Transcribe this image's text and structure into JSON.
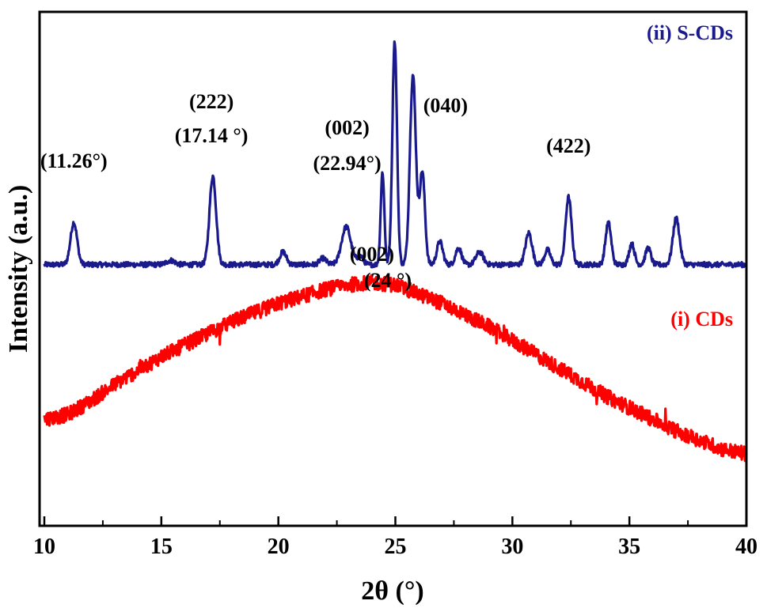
{
  "chart_data": {
    "type": "line",
    "xlabel": "2θ (°)",
    "ylabel": "Intensity (a.u.)",
    "xlim": [
      10,
      40
    ],
    "xticks": [
      "10",
      "15",
      "20",
      "25",
      "30",
      "35",
      "40"
    ],
    "yticks_shown": false,
    "grid": false,
    "series": [
      {
        "name": "(ii) S-CDs",
        "color": "#1a1a8c",
        "baseline": 0.62,
        "peaks": [
          {
            "x": 11.26,
            "height": 0.1,
            "width": 0.2
          },
          {
            "x": 15.4,
            "height": 0.01,
            "width": 0.25
          },
          {
            "x": 17.2,
            "height": 0.21,
            "width": 0.2
          },
          {
            "x": 20.2,
            "height": 0.03,
            "width": 0.2
          },
          {
            "x": 21.9,
            "height": 0.015,
            "width": 0.2
          },
          {
            "x": 22.9,
            "height": 0.09,
            "width": 0.28
          },
          {
            "x": 23.5,
            "height": 0.02,
            "width": 0.18
          },
          {
            "x": 24.45,
            "height": 0.22,
            "width": 0.11
          },
          {
            "x": 24.97,
            "height": 0.53,
            "width": 0.14
          },
          {
            "x": 25.75,
            "height": 0.45,
            "width": 0.18
          },
          {
            "x": 26.15,
            "height": 0.22,
            "width": 0.16
          },
          {
            "x": 26.9,
            "height": 0.055,
            "width": 0.18
          },
          {
            "x": 27.7,
            "height": 0.04,
            "width": 0.18
          },
          {
            "x": 28.6,
            "height": 0.03,
            "width": 0.22
          },
          {
            "x": 30.7,
            "height": 0.075,
            "width": 0.2
          },
          {
            "x": 31.5,
            "height": 0.035,
            "width": 0.18
          },
          {
            "x": 32.4,
            "height": 0.16,
            "width": 0.18
          },
          {
            "x": 34.1,
            "height": 0.1,
            "width": 0.17
          },
          {
            "x": 35.1,
            "height": 0.05,
            "width": 0.16
          },
          {
            "x": 35.8,
            "height": 0.04,
            "width": 0.16
          },
          {
            "x": 37.0,
            "height": 0.11,
            "width": 0.2
          }
        ]
      },
      {
        "name": "(i) CDs",
        "color": "#ff0000",
        "broad_peak_center": 24.0,
        "points": [
          [
            10,
            0.46
          ],
          [
            11,
            0.48
          ],
          [
            12,
            0.54
          ],
          [
            13,
            0.61
          ],
          [
            14,
            0.67
          ],
          [
            15,
            0.73
          ],
          [
            16,
            0.78
          ],
          [
            17,
            0.83
          ],
          [
            18,
            0.88
          ],
          [
            19,
            0.92
          ],
          [
            20,
            0.96
          ],
          [
            21,
            0.99
          ],
          [
            22,
            1.02
          ],
          [
            23,
            1.04
          ],
          [
            24,
            1.05
          ],
          [
            25,
            1.04
          ],
          [
            26,
            1.0
          ],
          [
            27,
            0.96
          ],
          [
            28,
            0.91
          ],
          [
            29,
            0.86
          ],
          [
            30,
            0.8
          ],
          [
            31,
            0.74
          ],
          [
            32,
            0.68
          ],
          [
            33,
            0.62
          ],
          [
            34,
            0.56
          ],
          [
            35,
            0.51
          ],
          [
            36,
            0.46
          ],
          [
            37,
            0.41
          ],
          [
            38,
            0.37
          ],
          [
            39,
            0.33
          ],
          [
            40,
            0.31
          ]
        ]
      }
    ],
    "annotations": [
      {
        "id": "a1",
        "lines": [
          "(11.26°)"
        ],
        "x": 11.26
      },
      {
        "id": "a2",
        "lines": [
          "(222)",
          "(17.14 °)"
        ],
        "x": 17.14
      },
      {
        "id": "a3",
        "lines": [
          "(002)",
          "(22.94°)"
        ],
        "x": 22.94
      },
      {
        "id": "a4",
        "lines": [
          "(040)"
        ],
        "x": 26.3
      },
      {
        "id": "a5",
        "lines": [
          "(422)"
        ],
        "x": 32.4
      },
      {
        "id": "a6",
        "lines": [
          "(002)",
          "(24 °)"
        ],
        "x": 24.0
      }
    ],
    "legend": [
      {
        "label": "(ii) S-CDs",
        "color": "#1a1a8c",
        "placement": "top-right"
      },
      {
        "label": "(i) CDs",
        "color": "#ff0000",
        "placement": "right"
      }
    ]
  }
}
